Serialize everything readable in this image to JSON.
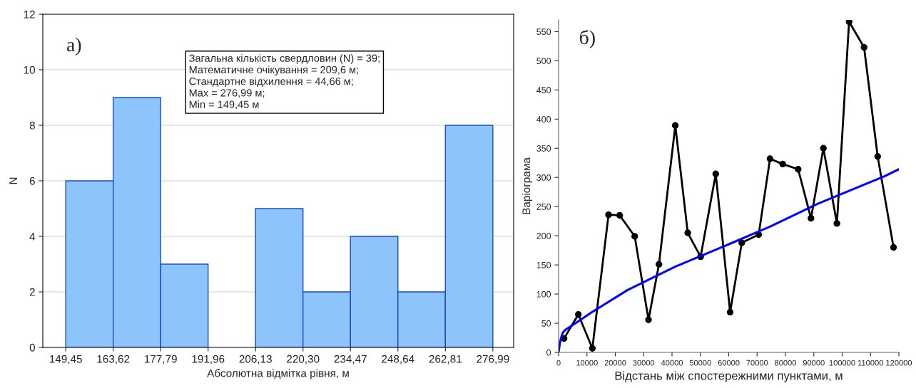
{
  "chart_data": [
    {
      "type": "histogram",
      "xlabel": "Абсолютна відмітка рівня, м",
      "ylabel": "N",
      "bins": [
        149.45,
        163.62,
        177.79,
        191.96,
        206.13,
        220.3,
        234.47,
        248.64,
        262.81,
        276.99
      ],
      "values": [
        6,
        9,
        3,
        0,
        5,
        2,
        4,
        2,
        8
      ],
      "color": "#8cc4fb",
      "xlim": [
        142.6,
        283.2
      ],
      "xticks": [
        {
          "value": 149.45,
          "label": "149,45"
        },
        {
          "value": 163.62,
          "label": "163,62"
        },
        {
          "value": 177.79,
          "label": "177,79"
        },
        {
          "value": 191.96,
          "label": "191,96"
        },
        {
          "value": 206.13,
          "label": "206,13"
        },
        {
          "value": 220.3,
          "label": "220,30"
        },
        {
          "value": 234.47,
          "label": "234,47"
        },
        {
          "value": 248.64,
          "label": "248,64"
        },
        {
          "value": 262.81,
          "label": "262,81"
        },
        {
          "value": 276.99,
          "label": "276,99"
        }
      ],
      "ylim": [
        0,
        12
      ],
      "yticks": [
        0,
        2,
        4,
        6,
        8,
        10,
        12
      ],
      "grid": "y",
      "annotations": [
        "а)",
        "Загальна кількість свердловин (N) = 39;\nМатематичне очікування = 209,6 м;\nСтандартне відхилення = 44,66 м;\nMax = 276,99 м;\nMin = 149,45 м"
      ]
    },
    {
      "type": "line",
      "xlabel": "Відстань між спостережними пунктами, м",
      "ylabel": "Варіограма",
      "series": [
        {
          "color": "#000000",
          "marker": "circle",
          "x": [
            1930,
            6960,
            11910,
            17620,
            21560,
            26850,
            31710,
            35400,
            41160,
            45550,
            50080,
            55420,
            60490,
            64600,
            70550,
            74560,
            79020,
            84480,
            89010,
            93380,
            98150,
            102440,
            107730,
            112520,
            118120
          ],
          "values": [
            24,
            65,
            7,
            236,
            235,
            199,
            56,
            151,
            389,
            205,
            164,
            306,
            69,
            188,
            202,
            332,
            323,
            314,
            230,
            350,
            221,
            567,
            523,
            336,
            180
          ]
        },
        {
          "color": "#0000ff",
          "marker": "none",
          "x": [
            0,
            420,
            1000,
            1510,
            2500,
            5000,
            11750,
            24330,
            41100,
            57900,
            74660,
            91440,
            114930,
            120000
          ],
          "values": [
            0,
            15,
            27,
            34,
            39,
            47,
            69,
            107,
            147,
            181,
            216,
            255,
            302,
            314
          ]
        }
      ],
      "xlim": [
        0,
        120000
      ],
      "xticks": [
        0,
        10000,
        20000,
        30000,
        40000,
        50000,
        60000,
        70000,
        80000,
        90000,
        100000,
        110000,
        120000
      ],
      "ylim": [
        0,
        570
      ],
      "yticks": [
        0,
        50,
        100,
        150,
        200,
        250,
        300,
        350,
        400,
        450,
        500,
        550
      ],
      "grid": false,
      "annotations": [
        "б)"
      ]
    }
  ]
}
